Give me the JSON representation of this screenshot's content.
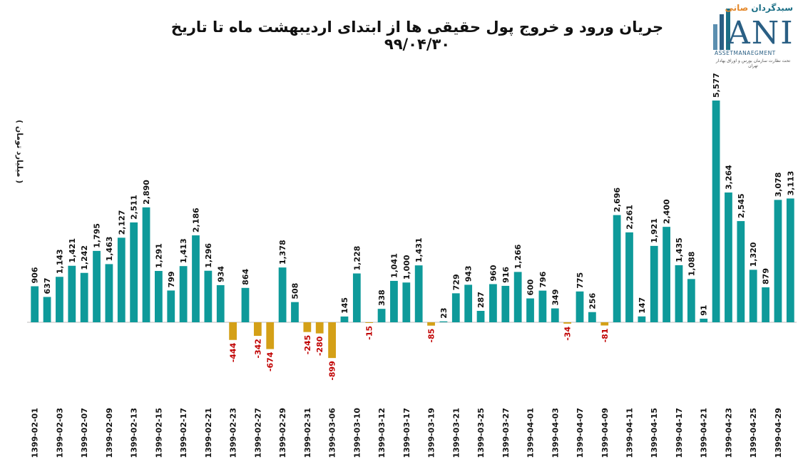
{
  "title": "جریان ورود و خروج پول حقیقی ها از ابتدای اردیبهشت ماه تا تاریخ ۹۹/۰۴/۳۰",
  "logo": {
    "brand": "سبدگردان",
    "brand_accent": "صانی",
    "word": "ANI",
    "sub": "ASSETMANAEGMENT",
    "tagline": "تحت نظارت سازمان بورس و اوراق بهادار تهران"
  },
  "colors": {
    "positive": "#0e9a9a",
    "negative": "#d4a017",
    "negative_label": "#c00000",
    "label": "#111111"
  },
  "chart_data": {
    "type": "bar",
    "title": "جریان ورود و خروج پول حقیقی ها از ابتدای اردیبهشت ماه تا تاریخ ۹۹/۰۴/۳۰",
    "ylabel": "( میلیارد تومان )",
    "xlabel": "",
    "grid": false,
    "ylim": [
      -899,
      5577
    ],
    "x_tick_labels": [
      "1399-02-01",
      "1399-02-03",
      "1399-02-07",
      "1399-02-09",
      "1399-02-13",
      "1399-02-15",
      "1399-02-17",
      "1399-02-21",
      "1399-02-23",
      "1399-02-27",
      "1399-02-29",
      "1399-02-31",
      "1399-03-06",
      "1399-03-10",
      "1399-03-12",
      "1399-03-17",
      "1399-03-19",
      "1399-03-21",
      "1399-03-25",
      "1399-03-27",
      "1399-04-01",
      "1399-04-03",
      "1399-04-07",
      "1399-04-09",
      "1399-04-11",
      "1399-04-15",
      "1399-04-17",
      "1399-04-21",
      "1399-04-23",
      "1399-04-25",
      "1399-04-29"
    ],
    "values": [
      906,
      637,
      1143,
      1421,
      1242,
      1795,
      1463,
      2127,
      2511,
      2890,
      1291,
      799,
      1413,
      2186,
      1296,
      934,
      -444,
      864,
      -342,
      -674,
      1378,
      508,
      -245,
      -280,
      -899,
      145,
      1228,
      -15,
      338,
      1041,
      1000,
      1431,
      -85,
      23,
      729,
      943,
      287,
      960,
      916,
      1266,
      600,
      796,
      349,
      -34,
      775,
      256,
      -81,
      2696,
      2261,
      147,
      1921,
      2400,
      1435,
      1088,
      91,
      5577,
      3264,
      2545,
      1320,
      879,
      3078,
      3113
    ],
    "labels": [
      "906",
      "637",
      "1,143",
      "1,421",
      "1,242",
      "1,795",
      "1,463",
      "2,127",
      "2,511",
      "2,890",
      "1,291",
      "799",
      "1,413",
      "2,186",
      "1,296",
      "934",
      "-444",
      "864",
      "-342",
      "-674",
      "1,378",
      "508",
      "-245",
      "-280",
      "-899",
      "145",
      "1,228",
      "-15",
      "338",
      "1,041",
      "1,000",
      "1,431",
      "-85",
      "23",
      "729",
      "943",
      "287",
      "960",
      "916",
      "1,266",
      "600",
      "796",
      "349",
      "-34",
      "775",
      "256",
      "-81",
      "2,696",
      "2,261",
      "147",
      "1,921",
      "2,400",
      "1,435",
      "1,088",
      "91",
      "5,577",
      "3,264",
      "2,545",
      "1,320",
      "879",
      "3,078",
      "3,113"
    ]
  }
}
